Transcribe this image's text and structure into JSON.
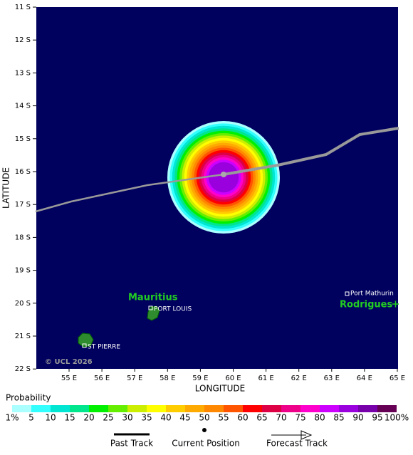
{
  "map": {
    "xlabel": "LONGITUDE",
    "ylabel": "LATITUDE",
    "xticks": [
      "55 E",
      "56 E",
      "57 E",
      "58 E",
      "59 E",
      "60 E",
      "61 E",
      "62 E",
      "63 E",
      "64 E",
      "65 E"
    ],
    "yticks": [
      "11 S",
      "12 S",
      "13 S",
      "14 S",
      "15 S",
      "16 S",
      "17 S",
      "18 S",
      "19 S",
      "20 S",
      "21 S",
      "22 S"
    ],
    "places": [
      "Mauritius",
      "PORT LOUIS",
      "ST PIERRE",
      "Port Mathurin",
      "Rodrigues"
    ],
    "copyright": "© UCL 2026"
  },
  "colorbar": {
    "title": "Probability",
    "labels": [
      "1%",
      "5",
      "10",
      "15",
      "20",
      "25",
      "30",
      "35",
      "40",
      "45",
      "50",
      "55",
      "60",
      "65",
      "70",
      "75",
      "80",
      "85",
      "90",
      "95",
      "100%"
    ],
    "colors": [
      "#aaffff",
      "#33ffff",
      "#00e6d2",
      "#00e68c",
      "#00f000",
      "#66ee00",
      "#ccee00",
      "#ffff00",
      "#ffcc00",
      "#ffaa00",
      "#ff8800",
      "#ff5500",
      "#ff0000",
      "#dd0044",
      "#ee0088",
      "#ff00cc",
      "#cc00ff",
      "#9900dd",
      "#7700aa",
      "#660055"
    ]
  },
  "legend": [
    "Past Track",
    "Current Position",
    "Forecast Track"
  ]
}
